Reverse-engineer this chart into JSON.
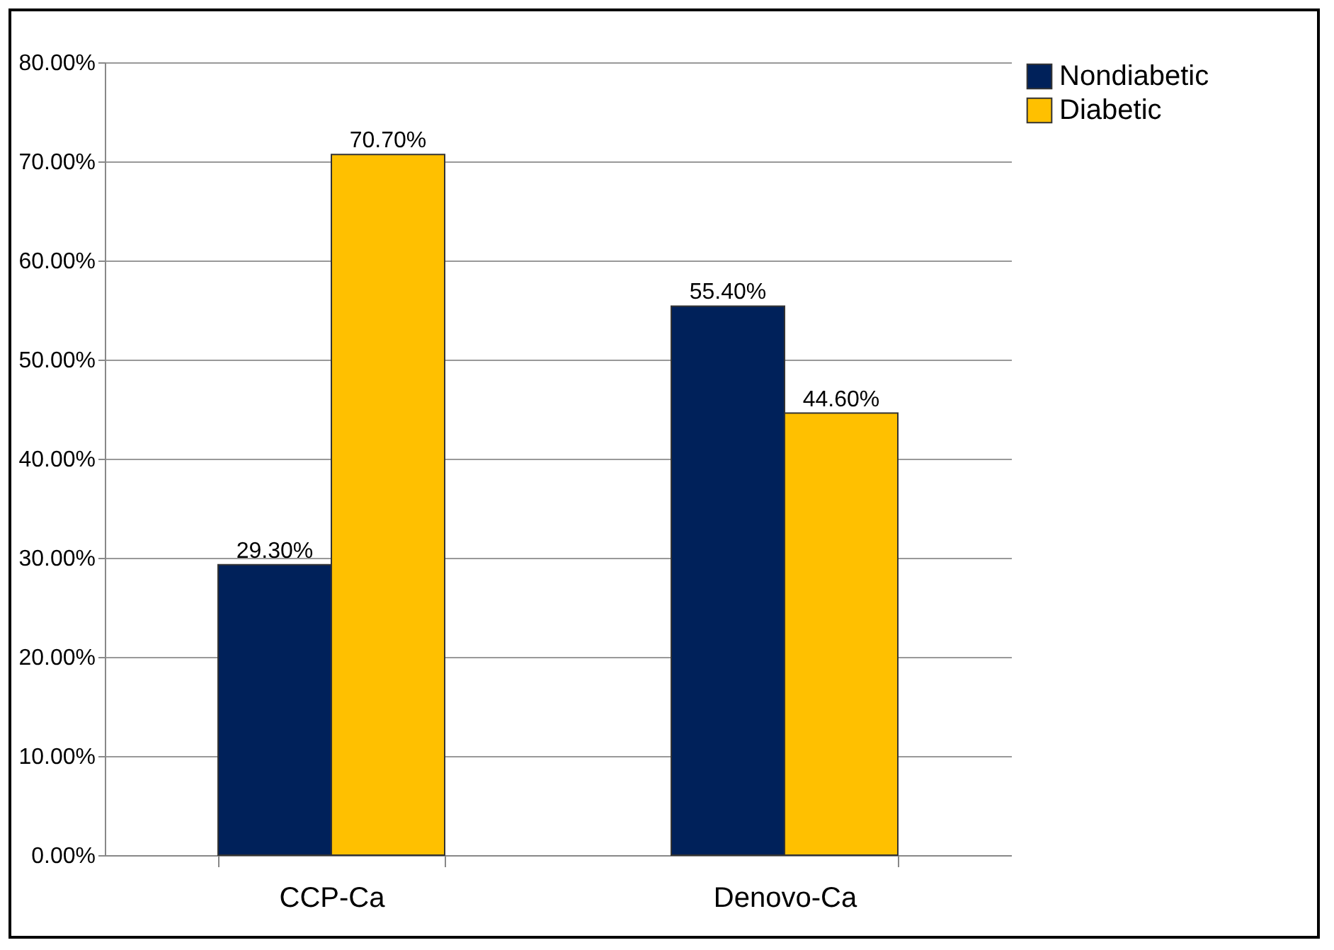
{
  "chart_data": {
    "type": "bar",
    "categories": [
      "CCP-Ca",
      "Denovo-Ca"
    ],
    "series": [
      {
        "name": "Nondiabetic",
        "color": "#00215a",
        "values": [
          29.3,
          55.4
        ],
        "value_labels": [
          "29.30%",
          "55.40%"
        ]
      },
      {
        "name": "Diabetic",
        "color": "#ffc000",
        "values": [
          70.7,
          44.6
        ],
        "value_labels": [
          "70.70%",
          "44.60%"
        ]
      }
    ],
    "ylim": [
      0,
      80
    ],
    "yticks": [
      {
        "value": 0,
        "label": "0.00%"
      },
      {
        "value": 10,
        "label": "10.00%"
      },
      {
        "value": 20,
        "label": "20.00%"
      },
      {
        "value": 30,
        "label": "30.00%"
      },
      {
        "value": 40,
        "label": "40.00%"
      },
      {
        "value": 50,
        "label": "50.00%"
      },
      {
        "value": 60,
        "label": "60.00%"
      },
      {
        "value": 70,
        "label": "70.00%"
      },
      {
        "value": 80,
        "label": "80.00%"
      }
    ],
    "grid": "y",
    "legend": "right"
  }
}
